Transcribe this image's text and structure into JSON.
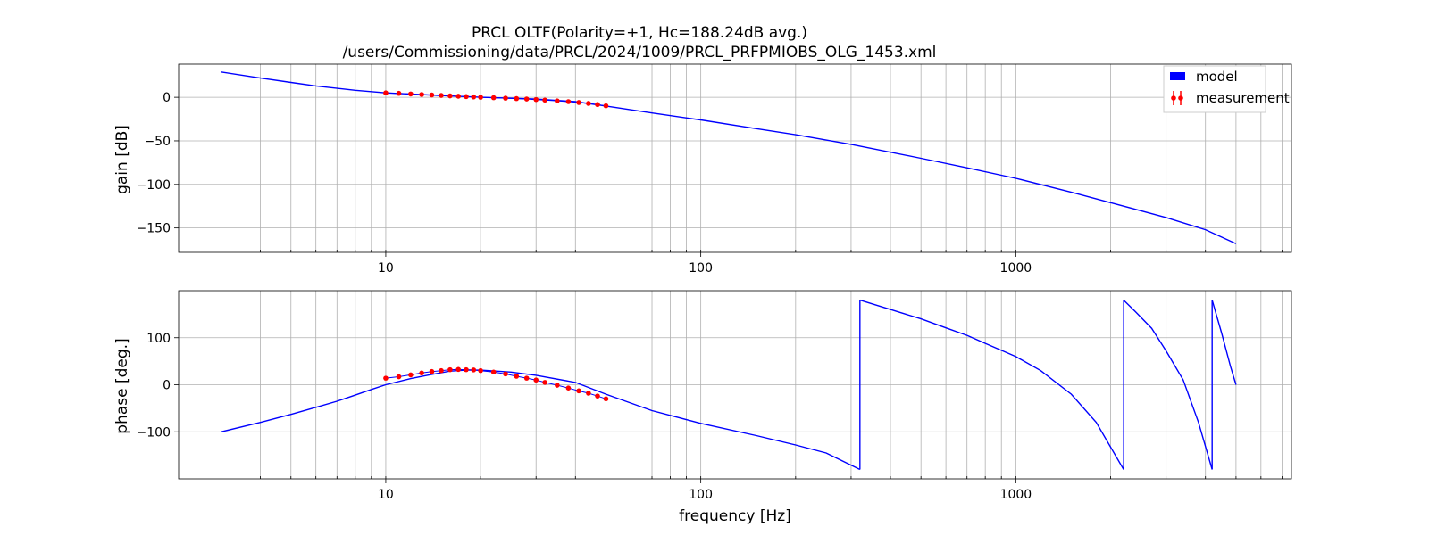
{
  "chart_data": {
    "type": "line",
    "title": "PRCL OLTF(Polarity=+1,  Hc=188.24dB avg.)",
    "subtitle": "/users/Commissioning/data/PRCL/2024/1009/PRCL_PRFPMIOBS_OLG_1453.xml",
    "xlabel": "frequency [Hz]",
    "xscale": "log",
    "xlim": [
      2.2,
      7500
    ],
    "xticks": [
      10,
      100,
      1000
    ],
    "xtick_labels": [
      "10",
      "100",
      "1000"
    ],
    "grid": true,
    "legend_placement": "top-right",
    "colors": {
      "model": "#0000ff",
      "measurement": "#ff0000"
    },
    "gain": {
      "ylabel": "gain [dB]",
      "ylim": [
        -178,
        38
      ],
      "yticks": [
        0,
        -50,
        -100,
        -150
      ],
      "ytick_labels": [
        "0",
        "−50",
        "−100",
        "−150"
      ],
      "series": [
        {
          "name": "model",
          "x": [
            3,
            4,
            5,
            6,
            8,
            10,
            15,
            20,
            30,
            40,
            50,
            70,
            100,
            150,
            200,
            300,
            500,
            700,
            1000,
            1500,
            2000,
            3000,
            4000,
            5000
          ],
          "y": [
            29,
            22,
            17,
            13,
            8,
            5,
            2,
            0,
            -2,
            -5,
            -10,
            -18,
            -26,
            -36,
            -43,
            -54,
            -70,
            -81,
            -93,
            -109,
            -121,
            -138,
            -152,
            -168
          ]
        },
        {
          "name": "measurement",
          "x": [
            10,
            11,
            12,
            13,
            14,
            15,
            16,
            17,
            18,
            19,
            20,
            22,
            24,
            26,
            28,
            30,
            32,
            35,
            38,
            41,
            44,
            47,
            50
          ],
          "y": [
            5,
            4.5,
            3.8,
            3.2,
            2.6,
            2.1,
            1.6,
            1.2,
            0.8,
            0.4,
            0,
            -0.5,
            -1,
            -1.5,
            -2,
            -2.6,
            -3.2,
            -4.1,
            -5,
            -6,
            -7,
            -8.3,
            -9.8
          ]
        }
      ]
    },
    "phase": {
      "ylabel": "phase [deg.]",
      "ylim": [
        -200,
        200
      ],
      "yticks": [
        100,
        0,
        -100
      ],
      "ytick_labels": [
        "100",
        "0",
        "−100"
      ],
      "series": [
        {
          "name": "model",
          "segments": [
            {
              "x": [
                3,
                4,
                5,
                6,
                7,
                8,
                9,
                10,
                12,
                14,
                16,
                18,
                20,
                25,
                30,
                40,
                50,
                70,
                100,
                150,
                200,
                250,
                320
              ],
              "y": [
                -100,
                -80,
                -63,
                -48,
                -35,
                -22,
                -10,
                0,
                13,
                22,
                29,
                31,
                31,
                27,
                20,
                5,
                -20,
                -55,
                -82,
                -108,
                -128,
                -145,
                -180
              ]
            },
            {
              "x": [
                320,
                400,
                500,
                600,
                700,
                800,
                1000,
                1200,
                1500,
                1800,
                2200
              ],
              "y": [
                180,
                160,
                140,
                121,
                105,
                88,
                60,
                30,
                -20,
                -80,
                -180
              ]
            },
            {
              "x": [
                2200,
                2400,
                2700,
                3000,
                3400,
                3800,
                4200
              ],
              "y": [
                180,
                155,
                120,
                72,
                10,
                -80,
                -180
              ]
            },
            {
              "x": [
                4200,
                4500,
                4800,
                5000
              ],
              "y": [
                180,
                110,
                40,
                0
              ]
            }
          ]
        },
        {
          "name": "measurement",
          "x": [
            10,
            11,
            12,
            13,
            14,
            15,
            16,
            17,
            18,
            19,
            20,
            22,
            24,
            26,
            28,
            30,
            32,
            35,
            38,
            41,
            44,
            47,
            50
          ],
          "y": [
            14,
            17,
            21,
            25,
            28,
            30,
            32,
            32.5,
            32,
            31.5,
            30,
            27,
            23,
            18,
            14,
            10,
            5,
            -1,
            -7,
            -13,
            -18,
            -24,
            -30
          ]
        }
      ]
    }
  }
}
